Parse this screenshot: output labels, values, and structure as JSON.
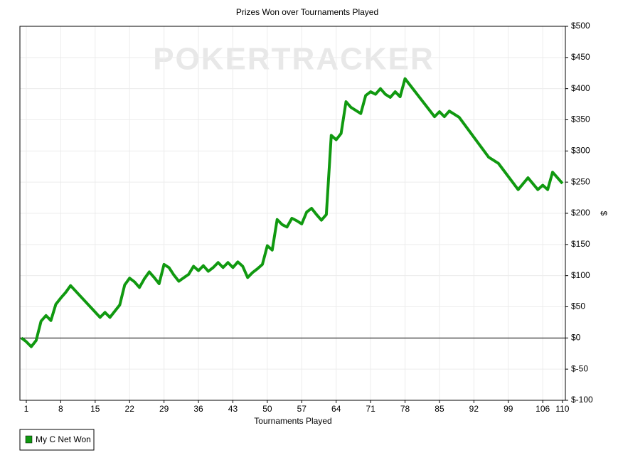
{
  "chart_data": {
    "type": "line",
    "title": "Prizes Won over Tournaments Played",
    "watermark": "POKERTRACKER",
    "x_label": "Tournaments Played",
    "y_label": "$",
    "x": [
      0,
      1,
      2,
      3,
      4,
      5,
      6,
      7,
      8,
      9,
      10,
      16,
      17,
      18,
      20,
      21,
      22,
      23,
      24,
      25,
      26,
      27,
      28,
      29,
      30,
      31,
      32,
      34,
      35,
      36,
      37,
      38,
      39,
      40,
      41,
      42,
      43,
      44,
      45,
      46,
      47,
      48,
      49,
      50,
      51,
      52,
      53,
      54,
      55,
      56,
      57,
      58,
      59,
      60,
      61,
      62,
      63,
      64,
      65,
      66,
      67,
      68,
      69,
      70,
      71,
      72,
      73,
      74,
      75,
      76,
      77,
      78,
      84,
      85,
      86,
      87,
      88,
      89,
      95,
      97,
      101,
      103,
      105,
      106,
      107,
      108,
      110
    ],
    "series": [
      {
        "name": "My C Net Won",
        "color": "#109910",
        "values": [
          0,
          -6,
          -14,
          -4,
          27,
          36,
          28,
          54,
          64,
          73,
          84,
          33,
          41,
          33,
          53,
          85,
          96,
          90,
          81,
          95,
          106,
          97,
          87,
          118,
          113,
          101,
          91,
          102,
          115,
          108,
          116,
          107,
          113,
          121,
          113,
          121,
          113,
          122,
          115,
          97,
          105,
          111,
          118,
          148,
          141,
          190,
          182,
          178,
          192,
          188,
          183,
          202,
          208,
          198,
          189,
          198,
          325,
          318,
          328,
          379,
          370,
          365,
          360,
          389,
          395,
          391,
          400,
          391,
          386,
          395,
          387,
          416,
          355,
          363,
          355,
          364,
          359,
          354,
          290,
          280,
          238,
          257,
          238,
          245,
          238,
          266,
          248
        ]
      }
    ],
    "xlim": [
      -0.3,
      110.6
    ],
    "xticks": [
      1,
      8,
      15,
      22,
      29,
      36,
      43,
      50,
      57,
      64,
      71,
      78,
      85,
      92,
      99,
      106,
      110
    ],
    "ylim": [
      -100,
      500
    ],
    "yticks": [
      {
        "value": -100,
        "label": "$-100"
      },
      {
        "value": -50,
        "label": "$-50"
      },
      {
        "value": 0,
        "label": "$0"
      },
      {
        "value": 50,
        "label": "$50"
      },
      {
        "value": 100,
        "label": "$100"
      },
      {
        "value": 150,
        "label": "$150"
      },
      {
        "value": 200,
        "label": "$200"
      },
      {
        "value": 250,
        "label": "$250"
      },
      {
        "value": 300,
        "label": "$300"
      },
      {
        "value": 350,
        "label": "$350"
      },
      {
        "value": 400,
        "label": "$400"
      },
      {
        "value": 450,
        "label": "$450"
      },
      {
        "value": 500,
        "label": "$500"
      }
    ],
    "grid": true,
    "legend": "bottom-left"
  }
}
